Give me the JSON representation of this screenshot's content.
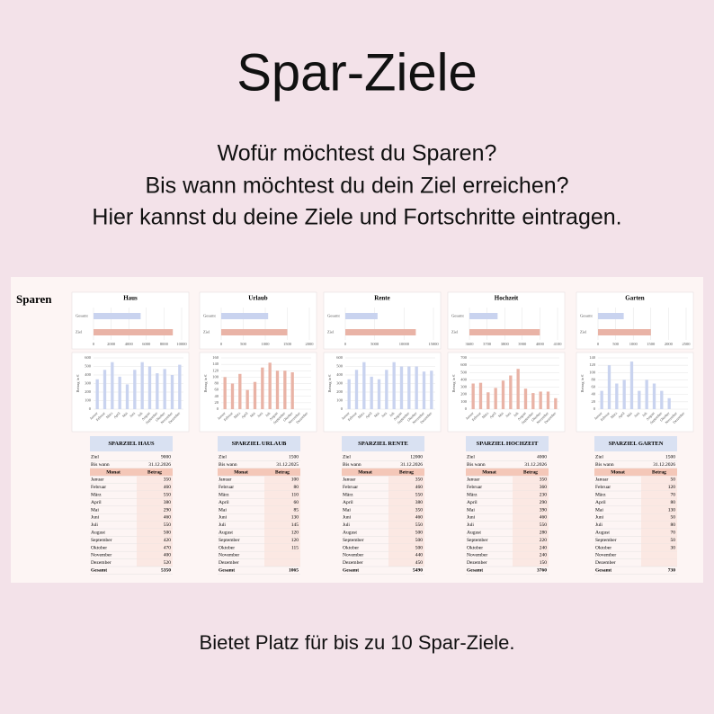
{
  "title": "Spar-Ziele",
  "subtitle": [
    "Wofür möchtest du Sparen?",
    "Bis wann möchtest du dein Ziel erreichen?",
    "Hier kannst du deine Ziele und Fortschritte eintragen."
  ],
  "sheet": {
    "heading": "Sparen",
    "months": [
      "Januar",
      "Februar",
      "März",
      "April",
      "Mai",
      "Juni",
      "Juli",
      "August",
      "September",
      "Oktober",
      "November",
      "Dezember"
    ],
    "labels": {
      "ziel": "Ziel",
      "bis": "Bis wann",
      "monat": "Monat",
      "betrag": "Betrag",
      "gesamt": "Gesamt",
      "axis": "Betrag in €"
    },
    "goals": [
      {
        "name": "Haus",
        "header": "SPARZIEL HAUS",
        "ziel": 9000,
        "bis": "31.12.2026",
        "gesamt": 5350,
        "values": [
          350,
          460,
          550,
          380,
          290,
          460,
          550,
          500,
          420,
          470,
          400,
          520
        ],
        "color": "#c9d3ef",
        "xlim": [
          0,
          10000
        ],
        "xticks": [
          0,
          2000,
          4000,
          6000,
          8000,
          10000
        ],
        "ylim": [
          0,
          600
        ],
        "yticks": [
          0,
          100,
          200,
          300,
          400,
          500,
          600
        ]
      },
      {
        "name": "Urlaub",
        "header": "SPARZIEL URLAUB",
        "ziel": 1500,
        "bis": "31.12.2025",
        "gesamt": 1065,
        "values": [
          100,
          80,
          110,
          60,
          85,
          130,
          145,
          120,
          120,
          115,
          null,
          null
        ],
        "color": "#e9b3a6",
        "xlim": [
          0,
          2000
        ],
        "xticks": [
          0,
          500,
          1000,
          1500,
          2000
        ],
        "ylim": [
          0,
          160
        ],
        "yticks": [
          0,
          20,
          40,
          60,
          80,
          100,
          120,
          140,
          160
        ]
      },
      {
        "name": "Rente",
        "header": "SPARZIEL RENTE",
        "ziel": 12000,
        "bis": "31.12.2026",
        "gesamt": 5490,
        "values": [
          350,
          460,
          550,
          380,
          350,
          460,
          550,
          500,
          500,
          500,
          440,
          450
        ],
        "color": "#c9d3ef",
        "xlim": [
          0,
          15000
        ],
        "xticks": [
          0,
          5000,
          10000,
          15000
        ],
        "ylim": [
          0,
          600
        ],
        "yticks": [
          0,
          100,
          200,
          300,
          400,
          500,
          600
        ]
      },
      {
        "name": "Hochzeit",
        "header": "SPARZIEL HOCHZEIT",
        "ziel": 4000,
        "bis": "31.12.2026",
        "gesamt": 3760,
        "values": [
          350,
          360,
          230,
          290,
          390,
          460,
          550,
          280,
          220,
          240,
          240,
          150
        ],
        "color": "#e9b3a6",
        "xlim": [
          3600,
          4100
        ],
        "xticks": [
          3600,
          3700,
          3800,
          3900,
          4000,
          4100
        ],
        "ylim": [
          0,
          700
        ],
        "yticks": [
          0,
          100,
          200,
          300,
          400,
          500,
          600,
          700
        ]
      },
      {
        "name": "Garten",
        "header": "SPARZIEL GARTEN",
        "ziel": 1500,
        "bis": "31.12.2026",
        "gesamt": 730,
        "values": [
          50,
          120,
          70,
          80,
          130,
          50,
          80,
          70,
          50,
          30,
          null,
          null
        ],
        "color": "#c9d3ef",
        "xlim": [
          0,
          2500
        ],
        "xticks": [
          0,
          500,
          1000,
          1500,
          2000,
          2500
        ],
        "ylim": [
          0,
          140
        ],
        "yticks": [
          0,
          20,
          40,
          60,
          80,
          100,
          120,
          140
        ]
      }
    ]
  },
  "footer": "Bietet Platz für bis zu 10 Spar-Ziele."
}
